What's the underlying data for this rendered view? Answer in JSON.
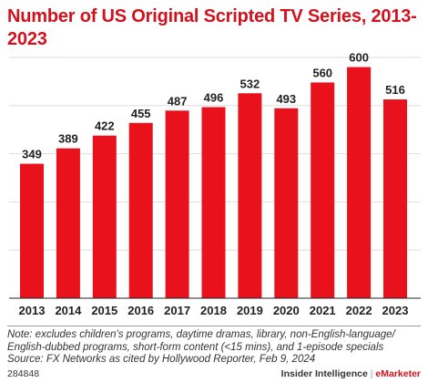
{
  "title": "Number of US Original Scripted TV Series, 2013-2023",
  "colors": {
    "bar": "#e8111c",
    "title": "#d3111c",
    "gridline": "#dddddd",
    "axis": "#222222"
  },
  "chart_data": {
    "type": "bar",
    "title": "Number of US Original Scripted TV Series, 2013-2023",
    "categories": [
      "2013",
      "2014",
      "2015",
      "2016",
      "2017",
      "2018",
      "2019",
      "2020",
      "2021",
      "2022",
      "2023"
    ],
    "values": [
      349,
      389,
      422,
      455,
      487,
      496,
      532,
      493,
      560,
      600,
      516
    ],
    "xlabel": "",
    "ylabel": "",
    "ylim": [
      0,
      625
    ],
    "grid": true,
    "legend": "none",
    "data_labels": true
  },
  "note": {
    "line1": "Note: excludes children's programs, daytime dramas, library, non-English-language/",
    "line2": "English-dubbed programs, short-form content (<15 mins), and 1-episode specials",
    "line3": "Source: FX Networks as cited by Hollywood Reporter, Feb 9, 2024"
  },
  "footer": {
    "id": "284848",
    "brand_left": "Insider Intelligence",
    "separator": "|",
    "brand_right": "eMarketer"
  }
}
